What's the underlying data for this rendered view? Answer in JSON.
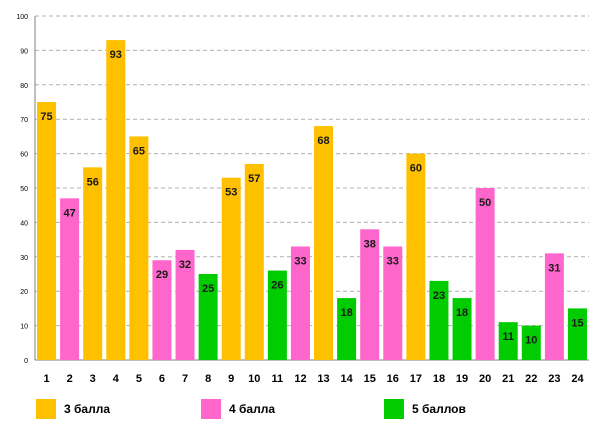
{
  "chart_data": {
    "type": "bar",
    "title": "",
    "xlabel": "",
    "ylabel": "",
    "ylim": [
      0,
      100
    ],
    "yticks": [
      0,
      10,
      20,
      30,
      40,
      50,
      60,
      70,
      80,
      90,
      100
    ],
    "grid": true,
    "categories": [
      "1",
      "2",
      "3",
      "4",
      "5",
      "6",
      "7",
      "8",
      "9",
      "10",
      "11",
      "12",
      "13",
      "14",
      "15",
      "16",
      "17",
      "18",
      "19",
      "20",
      "21",
      "22",
      "23",
      "24"
    ],
    "values": [
      75,
      47,
      56,
      93,
      65,
      29,
      32,
      25,
      53,
      57,
      26,
      33,
      68,
      18,
      38,
      33,
      60,
      23,
      18,
      50,
      11,
      10,
      31,
      15
    ],
    "groups": [
      0,
      1,
      0,
      0,
      0,
      1,
      1,
      2,
      0,
      0,
      2,
      1,
      0,
      2,
      1,
      1,
      0,
      2,
      2,
      1,
      2,
      2,
      1,
      2
    ],
    "series": [
      {
        "name": "3 балла",
        "color": "#FFC000"
      },
      {
        "name": "4 балла",
        "color": "#FF66CC"
      },
      {
        "name": "5 баллов",
        "color": "#00CC00"
      }
    ],
    "legend_position": "bottom"
  }
}
